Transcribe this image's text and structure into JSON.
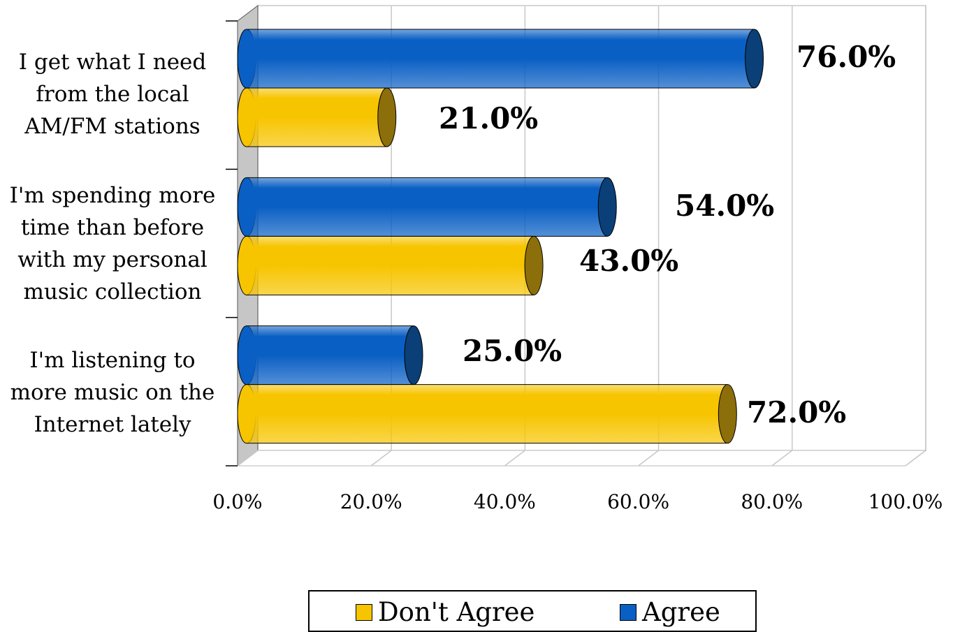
{
  "chart_data": {
    "type": "bar",
    "orientation": "horizontal",
    "style": "3d-cylinder",
    "categories": [
      [
        "I get what I need",
        "from the local",
        "AM/FM stations"
      ],
      [
        "I'm spending more",
        "time than before",
        "with my personal",
        "music collection"
      ],
      [
        "I'm listening to",
        "more music on the",
        "Internet lately"
      ]
    ],
    "series": [
      {
        "name": "Agree",
        "values": [
          76.0,
          54.0,
          25.0
        ],
        "labels": [
          "76.0%",
          "54.0%",
          "25.0%"
        ],
        "color": "#0A5FC4",
        "end_color": "#0B3F78"
      },
      {
        "name": "Don't Agree",
        "values": [
          21.0,
          43.0,
          72.0
        ],
        "labels": [
          "21.0%",
          "43.0%",
          "72.0%"
        ],
        "color": "#F7C400",
        "end_color": "#8C6E0A"
      }
    ],
    "x_ticks": [
      "0.0%",
      "20.0%",
      "40.0%",
      "60.0%",
      "80.0%",
      "100.0%"
    ],
    "xlim": [
      0,
      100
    ],
    "grid": true,
    "legend": {
      "position": "bottom",
      "entries": [
        {
          "name": "Don't Agree",
          "color": "#F7C400"
        },
        {
          "name": "Agree",
          "color": "#0A5FC4"
        }
      ]
    }
  }
}
